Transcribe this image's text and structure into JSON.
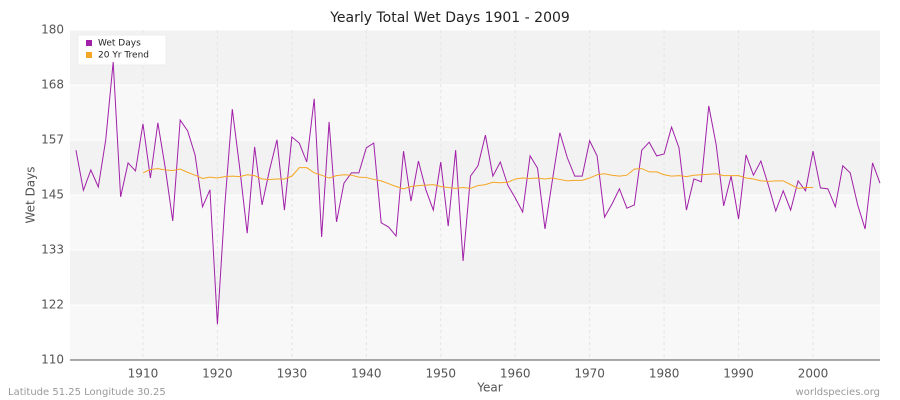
{
  "chart_data": {
    "type": "line",
    "title": "Yearly Total Wet Days 1901 - 2009",
    "x_label": "Year",
    "y_label": "Wet Days",
    "footer_left": "Latitude 51.25 Longitude 30.25",
    "footer_right": "worldspecies.org",
    "xlim": [
      1900.2,
      2009
    ],
    "ylim": [
      110,
      180
    ],
    "xticks": [
      1910,
      1920,
      1930,
      1940,
      1950,
      1960,
      1970,
      1980,
      1990,
      2000
    ],
    "yticks": [
      110,
      {
        "value": 121.667,
        "label": "122"
      },
      {
        "value": 133.333,
        "label": "133"
      },
      145,
      {
        "value": 156.667,
        "label": "157"
      },
      {
        "value": 168.333,
        "label": "168"
      },
      180
    ],
    "grid": true,
    "legend": "upper left",
    "x": [
      1901,
      1902,
      1903,
      1904,
      1905,
      1906,
      1907,
      1908,
      1909,
      1910,
      1911,
      1912,
      1913,
      1914,
      1915,
      1916,
      1917,
      1918,
      1919,
      1920,
      1921,
      1922,
      1923,
      1924,
      1925,
      1926,
      1927,
      1928,
      1929,
      1930,
      1931,
      1932,
      1933,
      1934,
      1935,
      1936,
      1937,
      1938,
      1939,
      1940,
      1941,
      1942,
      1943,
      1944,
      1945,
      1946,
      1947,
      1948,
      1949,
      1950,
      1951,
      1952,
      1953,
      1954,
      1955,
      1956,
      1957,
      1958,
      1959,
      1960,
      1961,
      1962,
      1963,
      1964,
      1965,
      1966,
      1967,
      1968,
      1969,
      1970,
      1971,
      1972,
      1973,
      1974,
      1975,
      1976,
      1977,
      1978,
      1979,
      1980,
      1981,
      1982,
      1983,
      1984,
      1985,
      1986,
      1987,
      1988,
      1989,
      1990,
      1991,
      1992,
      1993,
      1994,
      1995,
      1996,
      1997,
      1998,
      1999,
      2000,
      2001,
      2002,
      2003,
      2004,
      2005,
      2006,
      2007,
      2008,
      2009
    ],
    "series": [
      {
        "name": "Wet Days",
        "color": "#a020a8",
        "values": [
          154.5,
          146,
          150.3,
          146.7,
          156.7,
          173.2,
          144.6,
          151.8,
          150.1,
          160.1,
          148.6,
          160.3,
          150.7,
          139.5,
          160.9,
          158.6,
          153.5,
          142.5,
          146.1,
          117.6,
          142.9,
          163.2,
          150.7,
          136.9,
          155.2,
          142.9,
          150.3,
          156.7,
          141.8,
          157.3,
          156,
          152,
          165.4,
          136.1,
          160.5,
          139.3,
          147.5,
          149.7,
          149.7,
          155,
          156,
          139.1,
          138.2,
          136.3,
          154.3,
          143.7,
          152.2,
          146.1,
          141.8,
          152,
          138.4,
          154.5,
          131,
          149,
          151.2,
          157.7,
          149,
          152,
          147.1,
          144.4,
          141.4,
          153.3,
          150.7,
          137.8,
          148.2,
          158.2,
          152.9,
          149,
          149,
          156.5,
          153.3,
          140.3,
          143.1,
          146.3,
          142.2,
          142.9,
          154.5,
          156.2,
          153.3,
          153.7,
          159.4,
          155,
          141.8,
          148.4,
          147.8,
          163.9,
          155.6,
          142.7,
          149,
          139.9,
          153.5,
          149.2,
          152.2,
          147.1,
          141.6,
          145.9,
          141.8,
          148,
          145.9,
          154.3,
          146.5,
          146.3,
          142.5,
          151.2,
          149.7,
          142.9,
          137.8,
          151.8,
          147.5
        ]
      },
      {
        "name": "20 Yr Trend",
        "color": "#f5a623",
        "values": [
          null,
          null,
          null,
          null,
          null,
          null,
          null,
          null,
          null,
          149.7,
          150.4,
          150.6,
          150.3,
          150.2,
          150.5,
          149.8,
          149.2,
          148.5,
          148.8,
          148.6,
          148.9,
          149.0,
          148.9,
          149.3,
          149.1,
          148.4,
          148.3,
          148.4,
          148.4,
          149.0,
          150.8,
          150.8,
          149.7,
          149.2,
          148.6,
          149.1,
          149.3,
          149.2,
          148.8,
          148.7,
          148.3,
          148.0,
          147.4,
          146.8,
          146.3,
          146.8,
          147.0,
          147.1,
          147.2,
          146.8,
          146.6,
          146.4,
          146.6,
          146.4,
          147.0,
          147.2,
          147.7,
          147.6,
          147.7,
          148.4,
          148.6,
          148.5,
          148.6,
          148.4,
          148.6,
          148.3,
          148.0,
          148.1,
          148.1,
          148.6,
          149.3,
          149.5,
          149.2,
          149.0,
          149.2,
          150.5,
          150.6,
          149.9,
          149.9,
          149.3,
          149.0,
          149.1,
          148.9,
          149.2,
          149.3,
          149.4,
          149.5,
          149.1,
          149.1,
          149.1,
          148.6,
          148.4,
          148.0,
          147.9,
          148.0,
          148.0,
          147.2,
          146.4,
          146.6,
          146.6,
          null,
          null,
          null,
          null,
          null,
          null,
          null,
          null,
          null
        ]
      }
    ]
  }
}
